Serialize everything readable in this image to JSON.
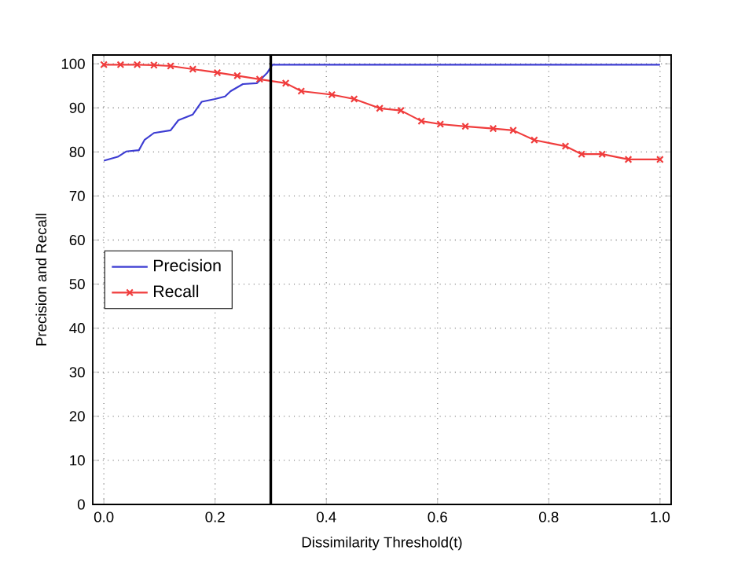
{
  "chart_data": {
    "type": "line",
    "xlabel": "Dissimilarity Threshold(t)",
    "ylabel": "Precision and Recall",
    "xlim": [
      -0.02,
      1.02
    ],
    "ylim": [
      0,
      102
    ],
    "xticks": [
      {
        "value": 0,
        "label": "0.0"
      },
      {
        "value": 0.2,
        "label": "0.2"
      },
      {
        "value": 0.4,
        "label": "0.4"
      },
      {
        "value": 0.6,
        "label": "0.6"
      },
      {
        "value": 0.8,
        "label": "0.8"
      },
      {
        "value": 1,
        "label": "1.0"
      }
    ],
    "yticks": [
      0,
      10,
      20,
      30,
      40,
      50,
      60,
      70,
      80,
      90,
      100
    ],
    "grid": true,
    "legend": "left",
    "ref_lines": [
      {
        "axis": "x",
        "value": 0.3,
        "color": "#000000"
      }
    ],
    "series": [
      {
        "name": "Precision",
        "color": "#3c3cd2",
        "marker": "none",
        "x": [
          0.0,
          0.025,
          0.04,
          0.063,
          0.073,
          0.09,
          0.12,
          0.134,
          0.16,
          0.176,
          0.2,
          0.218,
          0.228,
          0.25,
          0.275,
          0.294,
          0.303,
          0.4,
          0.6,
          0.8,
          1.0
        ],
        "values": [
          78,
          78.9,
          80.1,
          80.4,
          82.7,
          84.3,
          84.9,
          87.2,
          88.5,
          91.4,
          92,
          92.6,
          93.8,
          95.4,
          95.6,
          98,
          99.8,
          99.8,
          99.8,
          99.8,
          99.8
        ]
      },
      {
        "name": "Recall",
        "color": "#f03c3c",
        "marker": "cross",
        "x": [
          0.0,
          0.03,
          0.06,
          0.09,
          0.12,
          0.16,
          0.204,
          0.24,
          0.28,
          0.327,
          0.355,
          0.41,
          0.45,
          0.496,
          0.534,
          0.571,
          0.605,
          0.65,
          0.7,
          0.736,
          0.774,
          0.83,
          0.859,
          0.896,
          0.943,
          1.0
        ],
        "values": [
          99.8,
          99.8,
          99.8,
          99.7,
          99.5,
          98.8,
          98,
          97.3,
          96.5,
          95.6,
          93.8,
          93,
          92,
          89.9,
          89.4,
          87,
          86.3,
          85.8,
          85.3,
          84.9,
          82.7,
          81.3,
          79.5,
          79.5,
          78.3,
          78.3
        ]
      }
    ]
  }
}
